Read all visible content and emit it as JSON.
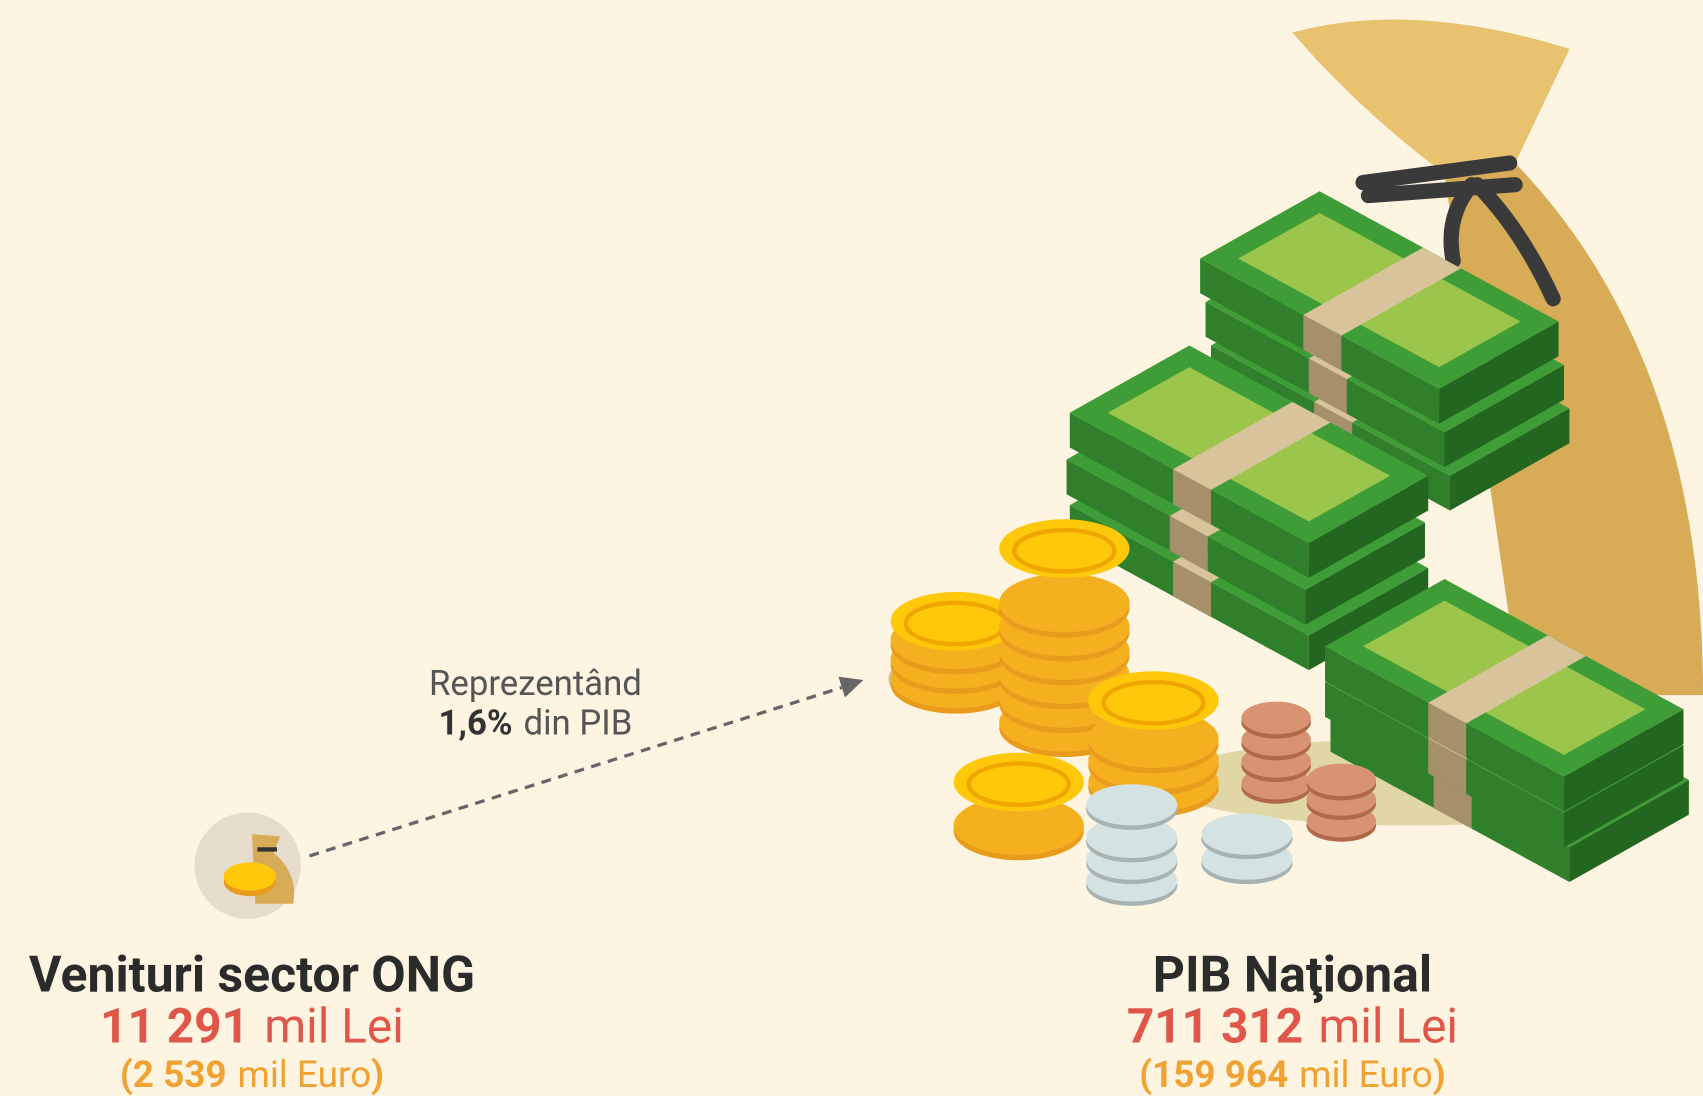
{
  "left": {
    "title": "Venituri sector ONG",
    "value": "11 291",
    "unit": "mil Lei",
    "open": "(",
    "euro_value": "2 539",
    "euro_unit": "mil Euro",
    "close": ")"
  },
  "annotation": {
    "line1": "Reprezentând",
    "percent": "1,6%",
    "rest": "din PIB"
  },
  "right": {
    "title": "PIB Naţional",
    "value": "711 312",
    "unit": "mil Lei",
    "open": "(",
    "euro_value": "159 964",
    "euro_unit": "mil Euro",
    "close": ")"
  }
}
